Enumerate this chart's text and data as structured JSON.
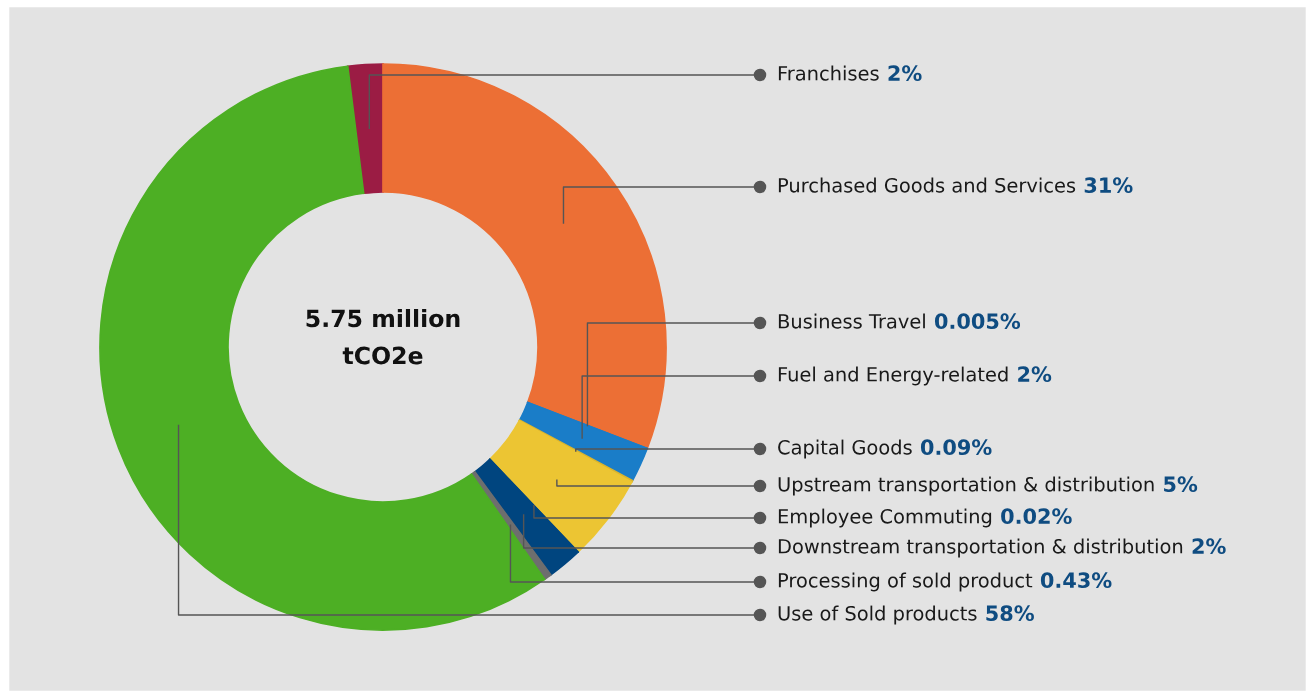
{
  "chart_data": {
    "type": "donut",
    "categories": [
      "Franchises",
      "Purchased Goods and Services",
      "Business Travel",
      "Fuel and Energy-related",
      "Capital Goods",
      "Upstream transportation & distribution",
      "Employee Commuting",
      "Downstream transportation & distribution",
      "Processing of sold product",
      "Use of Sold products"
    ],
    "values": [
      2,
      31,
      0.005,
      2,
      0.09,
      5,
      0.02,
      2,
      0.43,
      58
    ],
    "value_labels": [
      "2%",
      "31%",
      "0.005%",
      "2%",
      "0.09%",
      "5%",
      "0.02%",
      "2%",
      "0.43%",
      "58%"
    ],
    "colors": [
      "#9b1c44",
      "#ec6f35",
      "#1a7dc8",
      "#1a7dc8",
      "#d9b42e",
      "#ecc533",
      "#00457f",
      "#00457f",
      "#6e6e6e",
      "#4daf24"
    ],
    "annotations": [
      "5.75 million\ntCO2e"
    ],
    "legend": false
  }
}
